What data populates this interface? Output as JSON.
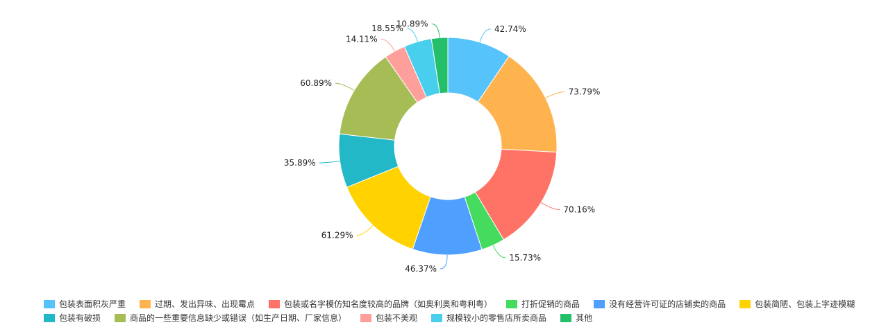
{
  "chart_data": {
    "type": "pie",
    "variant": "donut",
    "legend_position": "bottom",
    "categories": [
      "包装表面积灰严重",
      "过期、发出异味、出现霉点",
      "包装或名字模仿知名度较高的品牌（如奥利奥和粤利粤）",
      "打折促销的商品",
      "没有经营许可证的店铺卖的商品",
      "包装简陋、包装上字迹模糊",
      "包装有破损",
      "商品的一些重要信息缺少或错误（如生产日期、厂家信息）",
      "包装不美观",
      "规模较小的零售店所卖商品",
      "其他"
    ],
    "values": [
      42.74,
      73.79,
      70.16,
      15.73,
      46.37,
      61.29,
      35.89,
      60.89,
      14.11,
      18.55,
      10.89
    ],
    "labels": [
      "42.74%",
      "73.79%",
      "70.16%",
      "15.73%",
      "46.37%",
      "61.29%",
      "35.89%",
      "60.89%",
      "14.11%",
      "18.55%",
      "10.89%"
    ],
    "colors": [
      "#56c4fb",
      "#ffb34f",
      "#ff7366",
      "#44db5e",
      "#4e9ffe",
      "#ffd200",
      "#22b8c8",
      "#a6bd56",
      "#ff9f9b",
      "#48cfee",
      "#24bf6b"
    ]
  }
}
